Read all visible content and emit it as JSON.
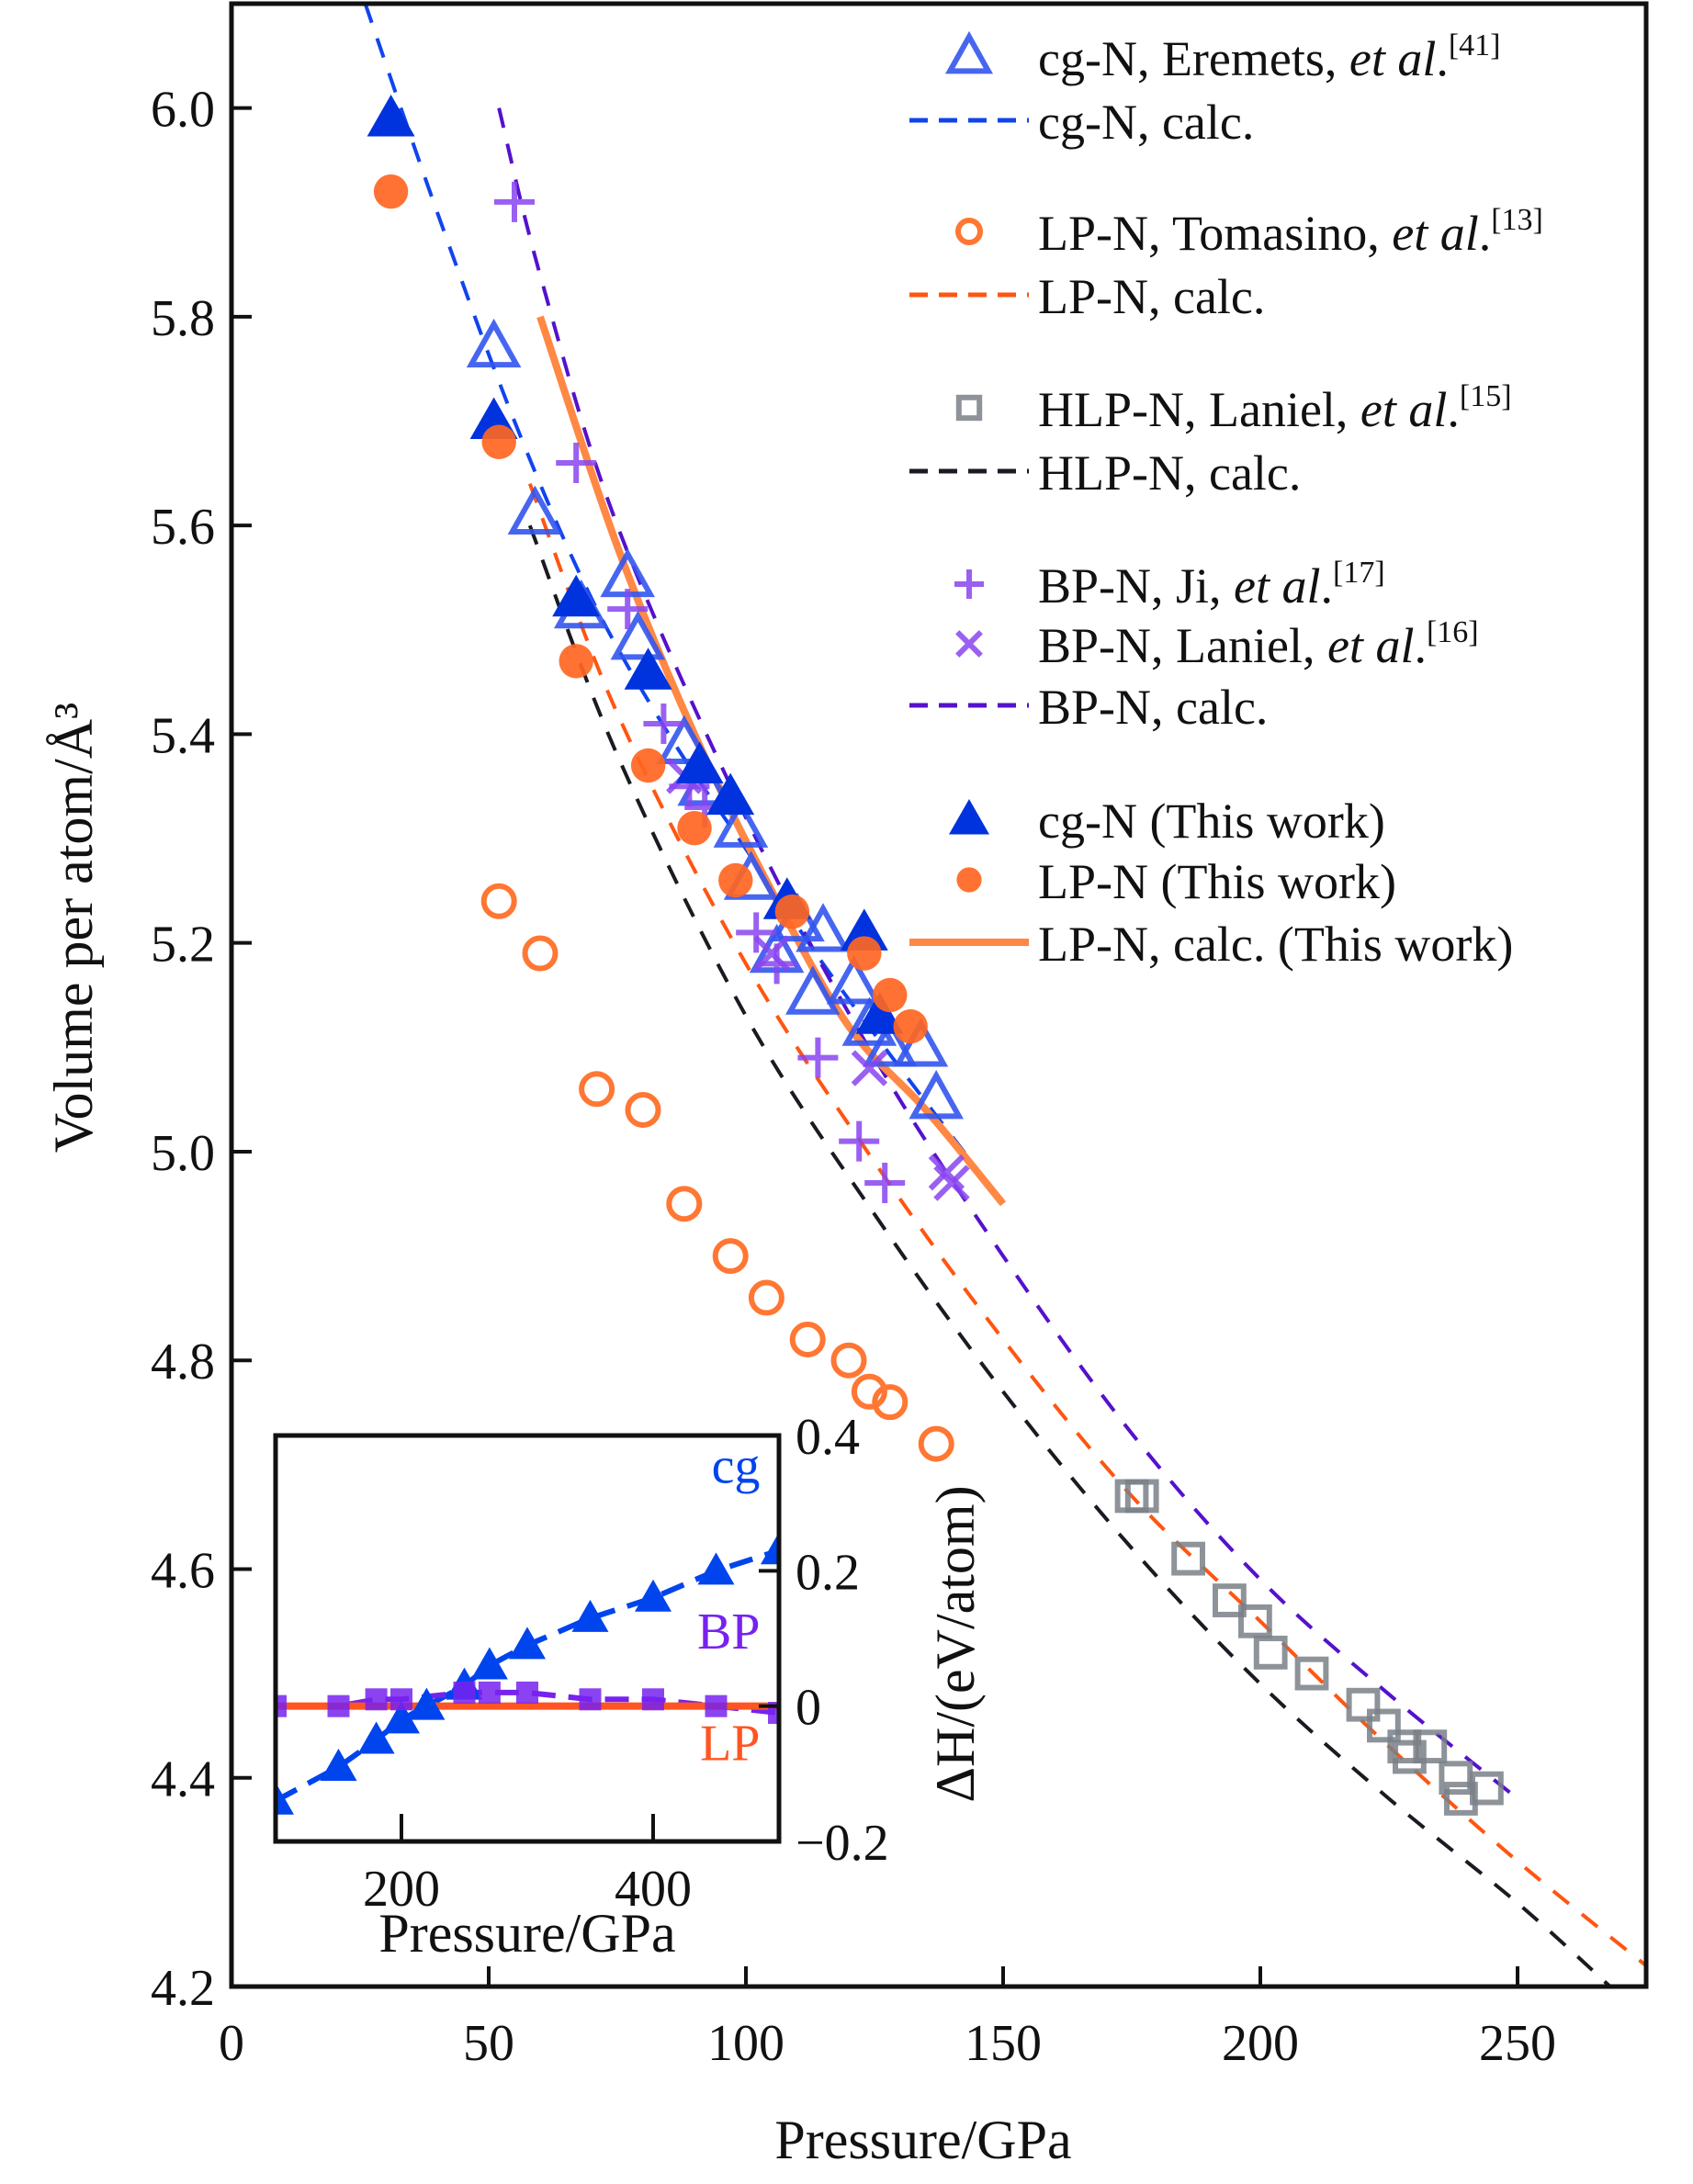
{
  "chart_data": {
    "type": "scatter",
    "main": {
      "xlabel": "Pressure/GPa",
      "ylabel": "Volume per atom/Å³",
      "xlim": [
        0,
        275
      ],
      "ylim": [
        4.2,
        6.1
      ],
      "xticks": [
        0,
        50,
        100,
        150,
        200,
        250
      ],
      "xtick_labels": [
        "0",
        "50",
        "100",
        "150",
        "200",
        "250"
      ],
      "yticks": [
        4.2,
        4.4,
        4.6,
        4.8,
        5.0,
        5.2,
        5.4,
        5.6,
        5.8,
        6.0
      ],
      "ytick_labels": [
        "4.2",
        "4.4",
        "4.6",
        "4.8",
        "5.0",
        "5.2",
        "5.4",
        "5.6",
        "5.8",
        "6.0"
      ],
      "legend_position": "top-right",
      "series": [
        {
          "name": "cg-N, Eremets, et al.",
          "ref": "[41]",
          "marker": "triangle-open",
          "color": "#3355ee",
          "points": [
            [
              51,
              5.77
            ],
            [
              59,
              5.61
            ],
            [
              68,
              5.52
            ],
            [
              77,
              5.55
            ],
            [
              79,
              5.49
            ],
            [
              88,
              5.39
            ],
            [
              92,
              5.35
            ],
            [
              99,
              5.31
            ],
            [
              101,
              5.26
            ],
            [
              106,
              5.19
            ],
            [
              110,
              5.22
            ],
            [
              113,
              5.15
            ],
            [
              115,
              5.21
            ],
            [
              121,
              5.16
            ],
            [
              124,
              5.12
            ],
            [
              128,
              5.1
            ],
            [
              134,
              5.1
            ],
            [
              137,
              5.05
            ]
          ]
        },
        {
          "name": "cg-N, calc.",
          "style": "dashed",
          "color": "#1144ee",
          "points": [
            [
              26,
              6.1
            ],
            [
              40,
              5.9
            ],
            [
              55,
              5.7
            ],
            [
              70,
              5.53
            ],
            [
              85,
              5.4
            ],
            [
              100,
              5.29
            ],
            [
              115,
              5.18
            ],
            [
              130,
              5.08
            ],
            [
              147,
              4.97
            ]
          ]
        },
        {
          "name": "LP-N, Tomasino, et al.",
          "ref": "[13]",
          "marker": "circle-open",
          "color": "#ff7733",
          "points": [
            [
              52,
              5.24
            ],
            [
              60,
              5.19
            ],
            [
              71,
              5.06
            ],
            [
              80,
              5.04
            ],
            [
              88,
              4.95
            ],
            [
              97,
              4.9
            ],
            [
              104,
              4.86
            ],
            [
              112,
              4.82
            ],
            [
              120,
              4.8
            ],
            [
              124,
              4.77
            ],
            [
              128,
              4.76
            ],
            [
              137,
              4.72
            ]
          ]
        },
        {
          "name": "LP-N, calc.",
          "style": "dashed",
          "color": "#ff5511",
          "points": [
            [
              58,
              5.64
            ],
            [
              75,
              5.42
            ],
            [
              100,
              5.18
            ],
            [
              125,
              4.99
            ],
            [
              150,
              4.82
            ],
            [
              175,
              4.67
            ],
            [
              200,
              4.55
            ],
            [
              225,
              4.43
            ],
            [
              250,
              4.32
            ],
            [
              275,
              4.22
            ]
          ]
        },
        {
          "name": "HLP-N, Laniel, et al.",
          "ref": "[15]",
          "marker": "square-open",
          "color": "#7a8088",
          "points": [
            [
              175,
              4.67
            ],
            [
              177,
              4.67
            ],
            [
              186,
              4.61
            ],
            [
              194,
              4.57
            ],
            [
              199,
              4.55
            ],
            [
              202,
              4.52
            ],
            [
              210,
              4.5
            ],
            [
              220,
              4.47
            ],
            [
              224,
              4.45
            ],
            [
              228,
              4.43
            ],
            [
              229,
              4.42
            ],
            [
              233,
              4.43
            ],
            [
              238,
              4.4
            ],
            [
              239,
              4.38
            ],
            [
              244,
              4.39
            ]
          ]
        },
        {
          "name": "HLP-N, calc.",
          "style": "dashed",
          "color": "#1a1a22",
          "points": [
            [
              58,
              5.6
            ],
            [
              75,
              5.38
            ],
            [
              100,
              5.13
            ],
            [
              125,
              4.94
            ],
            [
              150,
              4.77
            ],
            [
              175,
              4.62
            ],
            [
              200,
              4.49
            ],
            [
              225,
              4.38
            ],
            [
              250,
              4.28
            ],
            [
              268,
              4.2
            ]
          ]
        },
        {
          "name": "BP-N, Ji, et al.",
          "ref": "[17]",
          "marker": "plus",
          "color": "#8844ee",
          "points": [
            [
              55,
              5.91
            ],
            [
              67,
              5.66
            ],
            [
              77,
              5.52
            ],
            [
              84,
              5.41
            ],
            [
              89,
              5.35
            ],
            [
              92,
              5.33
            ],
            [
              102,
              5.21
            ],
            [
              106,
              5.18
            ],
            [
              114,
              5.09
            ],
            [
              122,
              5.01
            ],
            [
              127,
              4.97
            ]
          ]
        },
        {
          "name": "BP-N, Laniel, et al.",
          "ref": "[16]",
          "marker": "x",
          "color": "#8844ee",
          "points": [
            [
              88,
              5.36
            ],
            [
              105,
              5.19
            ],
            [
              124,
              5.08
            ],
            [
              139,
              4.98
            ],
            [
              140,
              4.97
            ]
          ]
        },
        {
          "name": "BP-N, calc.",
          "style": "dashed",
          "color": "#5511cc",
          "points": [
            [
              52,
              6.0
            ],
            [
              60,
              5.84
            ],
            [
              75,
              5.6
            ],
            [
              100,
              5.32
            ],
            [
              125,
              5.09
            ],
            [
              150,
              4.9
            ],
            [
              175,
              4.73
            ],
            [
              200,
              4.59
            ],
            [
              225,
              4.48
            ],
            [
              250,
              4.38
            ]
          ]
        },
        {
          "name": "cg-N (This work)",
          "marker": "triangle-filled",
          "color": "#0033dd",
          "points": [
            [
              31,
              5.99
            ],
            [
              51,
              5.7
            ],
            [
              67,
              5.53
            ],
            [
              81,
              5.46
            ],
            [
              91,
              5.37
            ],
            [
              97,
              5.34
            ],
            [
              108,
              5.24
            ],
            [
              123,
              5.21
            ],
            [
              126,
              5.13
            ]
          ]
        },
        {
          "name": "LP-N (This work)",
          "marker": "circle-filled",
          "color": "#ff6622",
          "points": [
            [
              31,
              5.92
            ],
            [
              52,
              5.68
            ],
            [
              67,
              5.47
            ],
            [
              81,
              5.37
            ],
            [
              90,
              5.31
            ],
            [
              98,
              5.26
            ],
            [
              109,
              5.23
            ],
            [
              123,
              5.19
            ],
            [
              128,
              5.15
            ],
            [
              132,
              5.12
            ]
          ]
        },
        {
          "name": "LP-N, calc. (This work)",
          "style": "solid",
          "color": "#ff8844",
          "points": [
            [
              60,
              5.8
            ],
            [
              75,
              5.58
            ],
            [
              90,
              5.4
            ],
            [
              105,
              5.25
            ],
            [
              120,
              5.12
            ],
            [
              135,
              5.04
            ],
            [
              150,
              4.95
            ]
          ]
        }
      ]
    },
    "inset": {
      "xlabel": "Pressure/GPa",
      "ylabel": "ΔH/(eV/atom)",
      "xlim": [
        100,
        500
      ],
      "ylim": [
        -0.2,
        0.4
      ],
      "xticks": [
        200,
        400
      ],
      "xtick_labels": [
        "200",
        "400"
      ],
      "yticks": [
        -0.2,
        0,
        0.2,
        0.4
      ],
      "ytick_labels": [
        "−0.2",
        "0",
        "0.2",
        "0.4"
      ],
      "series": [
        {
          "name": "cg",
          "label": "cg",
          "marker": "triangle-filled",
          "style": "dashed",
          "color": "#0044ee",
          "points": [
            [
              100,
              -0.14
            ],
            [
              150,
              -0.09
            ],
            [
              180,
              -0.05
            ],
            [
              200,
              -0.02
            ],
            [
              220,
              0.0
            ],
            [
              250,
              0.03
            ],
            [
              270,
              0.06
            ],
            [
              300,
              0.09
            ],
            [
              350,
              0.13
            ],
            [
              400,
              0.16
            ],
            [
              450,
              0.2
            ],
            [
              500,
              0.23
            ]
          ]
        },
        {
          "name": "BP",
          "label": "BP",
          "marker": "square-filled",
          "style": "dashed",
          "color": "#7722ee",
          "points": [
            [
              100,
              0.0
            ],
            [
              150,
              0.0
            ],
            [
              180,
              0.01
            ],
            [
              200,
              0.01
            ],
            [
              250,
              0.02
            ],
            [
              270,
              0.02
            ],
            [
              300,
              0.02
            ],
            [
              350,
              0.01
            ],
            [
              400,
              0.01
            ],
            [
              450,
              0.0
            ],
            [
              500,
              -0.01
            ]
          ]
        },
        {
          "name": "LP",
          "label": "LP",
          "style": "solid",
          "color": "#ff5522",
          "points": [
            [
              100,
              0.0
            ],
            [
              500,
              0.0
            ]
          ]
        }
      ]
    }
  }
}
